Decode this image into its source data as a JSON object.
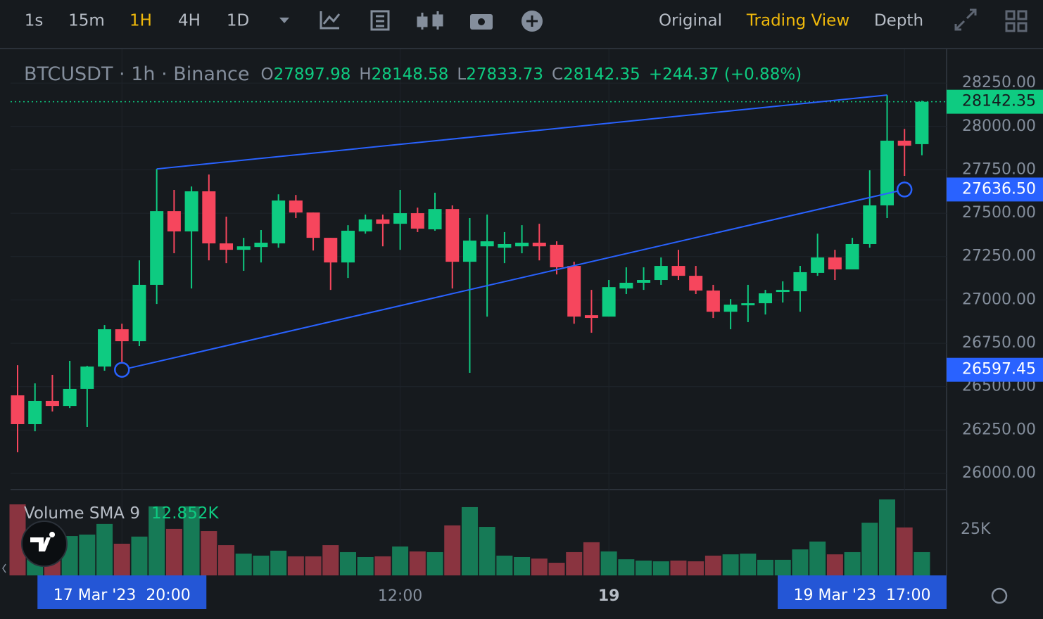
{
  "toolbar": {
    "intervals": [
      "1s",
      "15m",
      "1H",
      "4H",
      "1D"
    ],
    "active_interval": 2,
    "views": [
      "Original",
      "Trading View",
      "Depth"
    ],
    "active_view": 1
  },
  "chart_data": {
    "type": "candlestick",
    "title": "BTCUSDT · 1h · Binance",
    "ohlc_labels": [
      "O",
      "H",
      "L",
      "C"
    ],
    "change": "+244.37 (+0.88%)",
    "up_color": "#0ecb81",
    "down_color": "#f6465d",
    "categories": [
      null,
      null,
      null,
      null,
      null,
      null,
      "17 Mar '23  20:00",
      null,
      null,
      null,
      null,
      null,
      null,
      null,
      null,
      null,
      null,
      null,
      null,
      null,
      null,
      null,
      "12:00",
      null,
      null,
      null,
      null,
      null,
      null,
      null,
      null,
      null,
      null,
      null,
      "19",
      null,
      null,
      null,
      null,
      null,
      null,
      null,
      null,
      null,
      null,
      null,
      null,
      null,
      null,
      null,
      null,
      "19 Mar '23  17:00",
      null
    ],
    "open": [
      26450,
      26284,
      26418,
      26389,
      26487,
      26616,
      26831,
      26762,
      27087,
      27512,
      27395,
      27626,
      27326,
      27289,
      27305,
      27326,
      27573,
      27504,
      27358,
      27216,
      27395,
      27464,
      27439,
      27500,
      27407,
      27524,
      27220,
      27309,
      27301,
      27309,
      27330,
      27318,
      27196,
      26912,
      26904,
      27066,
      27099,
      27115,
      27196,
      27139,
      27054,
      26932,
      26969,
      26981,
      27046,
      27050,
      27156,
      27245,
      27176,
      27322,
      27545,
      27918,
      27897.98
    ],
    "high": [
      26624,
      26519,
      26568,
      26649,
      26620,
      26855,
      26863,
      27228,
      27755,
      27634,
      27654,
      27723,
      27480,
      27358,
      27403,
      27609,
      27605,
      27504,
      27358,
      27431,
      27492,
      27492,
      27634,
      27532,
      27618,
      27545,
      27472,
      27492,
      27391,
      27431,
      27439,
      27338,
      27220,
      27058,
      27115,
      27188,
      27188,
      27245,
      27289,
      27196,
      27087,
      27005,
      27087,
      27058,
      27107,
      27196,
      27382,
      27289,
      27358,
      27747,
      28181,
      27986,
      28148.58
    ],
    "low": [
      26122,
      26243,
      26357,
      26377,
      26268,
      26592,
      26600,
      26734,
      26977,
      27269,
      27066,
      27228,
      27212,
      27168,
      27216,
      27301,
      27472,
      27285,
      27058,
      27127,
      27382,
      27309,
      27289,
      27391,
      27399,
      27066,
      26580,
      26904,
      27212,
      27269,
      27228,
      27147,
      26863,
      26811,
      26904,
      27034,
      27058,
      27087,
      27115,
      27034,
      26896,
      26831,
      26872,
      26916,
      26985,
      26932,
      27139,
      27115,
      27176,
      27301,
      27472,
      27715,
      27833.73
    ],
    "close": [
      26284,
      26418,
      26389,
      26487,
      26616,
      26831,
      26762,
      27087,
      27512,
      27395,
      27626,
      27326,
      27289,
      27309,
      27330,
      27573,
      27504,
      27358,
      27216,
      27399,
      27464,
      27439,
      27500,
      27411,
      27524,
      27220,
      27342,
      27338,
      27322,
      27330,
      27309,
      27188,
      26904,
      26896,
      27074,
      27099,
      27115,
      27196,
      27139,
      27054,
      26932,
      26973,
      26981,
      27038,
      27058,
      27160,
      27245,
      27176,
      27322,
      27545,
      27918,
      27889,
      28142.35
    ],
    "ylim": [
      25911,
      28445
    ],
    "yticks": [
      {
        "value": 28250,
        "label": "28250.00"
      },
      {
        "value": 28000,
        "label": "28000.00"
      },
      {
        "value": 27750,
        "label": "27750.00"
      },
      {
        "value": 27500,
        "label": "27500.00"
      },
      {
        "value": 27250,
        "label": "27250.00"
      },
      {
        "value": 27000,
        "label": "27000.00"
      },
      {
        "value": 26750,
        "label": "26750.00"
      },
      {
        "value": 26500,
        "label": "26500.00"
      },
      {
        "value": 26250,
        "label": "26250.00"
      },
      {
        "value": 26000,
        "label": "26000.00"
      }
    ],
    "grid": true,
    "drawings": [
      {
        "color": "#2962ff",
        "start": {
          "index": 8,
          "price": 27755
        },
        "end": {
          "index": 50,
          "price": 28181
        }
      },
      {
        "color": "#2962ff",
        "selected": true,
        "start": {
          "index": 6,
          "price": 26597.45
        },
        "end": {
          "index": 51,
          "price": 27636.5,
          "label": "27636.50"
        }
      }
    ],
    "volume": {
      "title": "Volume SMA 9",
      "sma_label": "12.852K",
      "up_color": "#167a56",
      "down_color": "#8a3440",
      "values": [
        38800,
        20400,
        22300,
        21500,
        22300,
        28100,
        17300,
        21200,
        37700,
        25400,
        37700,
        24200,
        16500,
        11900,
        10800,
        13500,
        10400,
        10400,
        16500,
        12700,
        10000,
        10400,
        15800,
        13100,
        12700,
        27300,
        37300,
        26500,
        10800,
        10000,
        9200,
        6900,
        12700,
        18100,
        13100,
        8800,
        8100,
        7700,
        8100,
        7700,
        10800,
        11500,
        11900,
        8500,
        8500,
        14200,
        18500,
        11500,
        12700,
        28800,
        41500,
        26200,
        12700
      ],
      "ylim": [
        0,
        46500
      ],
      "yticks": [
        {
          "value": 25000,
          "label": "25K"
        }
      ]
    }
  }
}
